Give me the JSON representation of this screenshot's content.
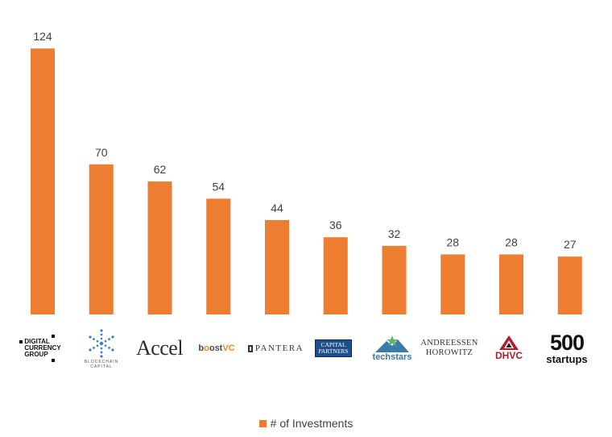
{
  "chart_data": {
    "type": "bar",
    "categories": [
      "Digital Currency Group",
      "Blockchain Capital",
      "Accel",
      "boostVC",
      "Pantera",
      "Capital Partners",
      "Techstars",
      "Andreessen Horowitz",
      "DHVC",
      "500 startups"
    ],
    "series": [
      {
        "name": "# of Investments",
        "values": [
          124,
          70,
          62,
          54,
          44,
          36,
          32,
          28,
          28,
          27
        ]
      }
    ],
    "ylim": [
      0,
      130
    ],
    "grid": false,
    "legend": "bottom",
    "color": "#ED7D31"
  },
  "logos": {
    "dcg": [
      "DIGITAL",
      "CURRENCY",
      "GROUP"
    ],
    "blockchain": [
      "BLOCKCHAIN",
      "CAPITAL"
    ],
    "accel": "Accel",
    "boost_a": "b",
    "boost_b": "o",
    "boost_c": "ost",
    "boost_d": "VC",
    "pantera": "PANTERA",
    "capital": [
      "CAPITAL",
      "PARTNERS"
    ],
    "techstars": "techstars",
    "a16z": [
      "ANDREESSEN",
      "HOROWITZ"
    ],
    "dhvc": "DHVC",
    "s500": [
      "500",
      "startups"
    ]
  }
}
